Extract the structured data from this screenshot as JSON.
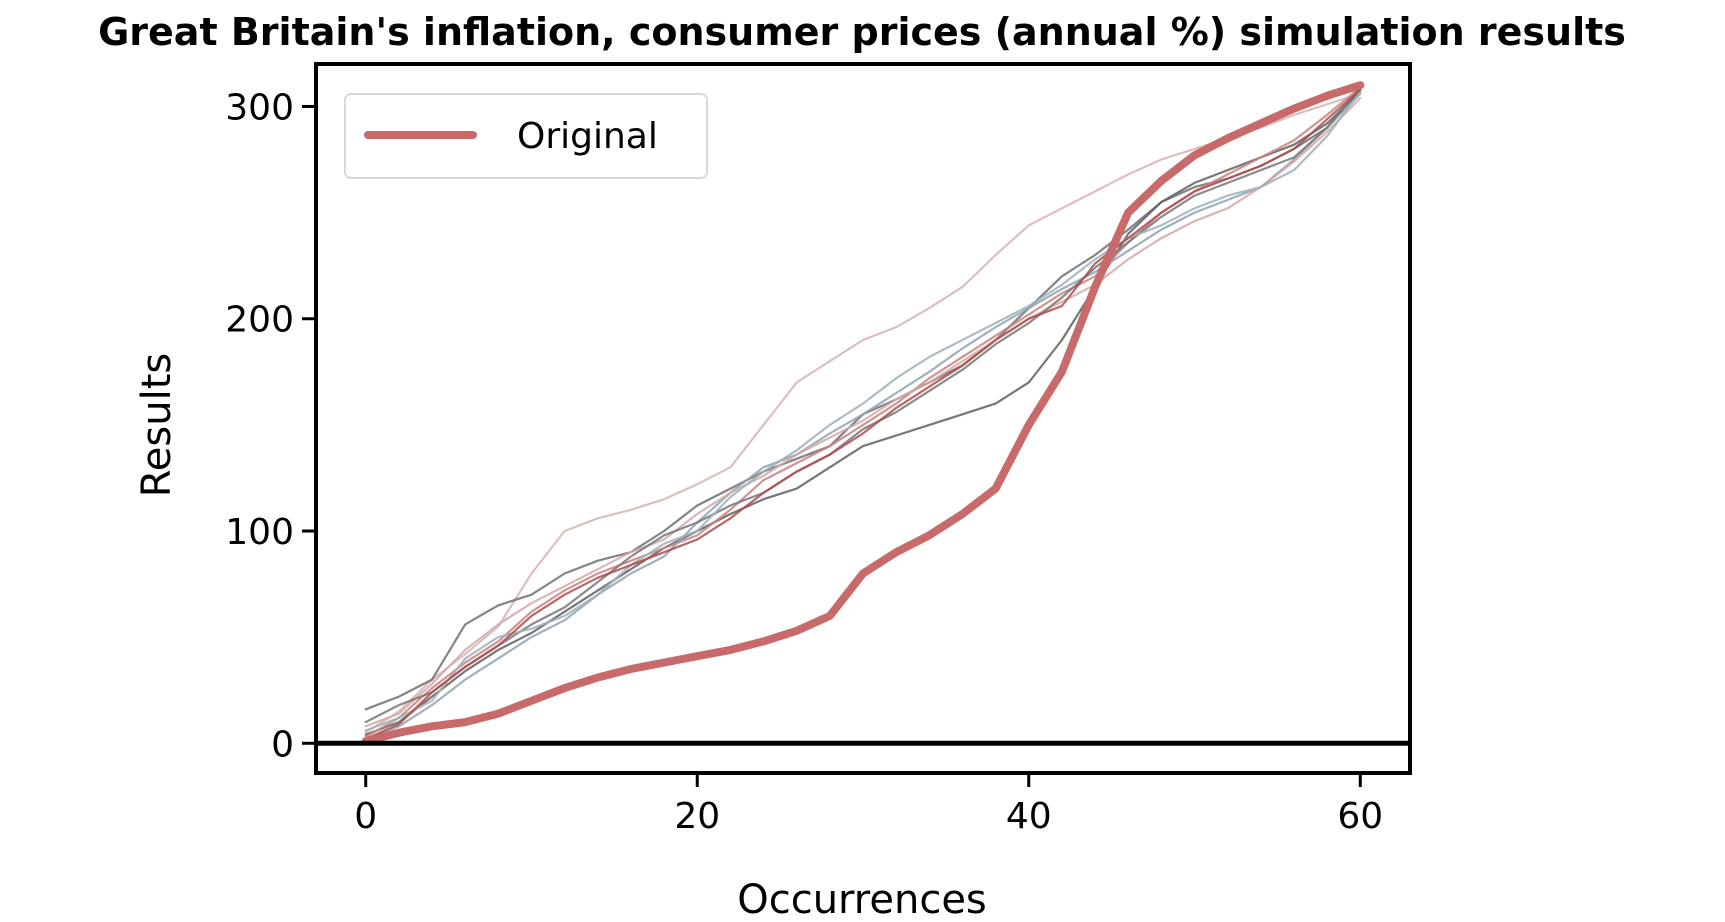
{
  "chart_data": {
    "type": "line",
    "title": "Great Britain's inflation, consumer prices (annual %) simulation results",
    "xlabel": "Occurrences",
    "ylabel": "Results",
    "xlim": [
      -3,
      63
    ],
    "ylim": [
      -14,
      320
    ],
    "xticks": [
      0,
      20,
      40,
      60
    ],
    "yticks": [
      0,
      100,
      200,
      300
    ],
    "grid": false,
    "legend_position": "top-left",
    "zero_line": true,
    "series": [
      {
        "name": "Original",
        "color": "#c96a6a",
        "highlight": true,
        "x": [
          0,
          2,
          4,
          6,
          8,
          10,
          12,
          14,
          16,
          18,
          20,
          22,
          24,
          26,
          28,
          30,
          32,
          34,
          36,
          38,
          40,
          42,
          44,
          46,
          48,
          50,
          52,
          54,
          56,
          58,
          60
        ],
        "y": [
          1,
          5,
          8,
          10,
          14,
          20,
          26,
          31,
          35,
          38,
          41,
          44,
          48,
          53,
          60,
          80,
          90,
          98,
          108,
          120,
          150,
          175,
          215,
          250,
          265,
          277,
          285,
          292,
          299,
          305,
          310
        ]
      },
      {
        "color": "#d7b3b3",
        "x": [
          0,
          2,
          4,
          6,
          8,
          10,
          12,
          14,
          16,
          18,
          20,
          22,
          24,
          26,
          28,
          30,
          32,
          34,
          36,
          38,
          40,
          42,
          44,
          46,
          48,
          50,
          52,
          54,
          56,
          58,
          60
        ],
        "y": [
          5,
          15,
          30,
          42,
          55,
          80,
          100,
          106,
          110,
          115,
          122,
          130,
          150,
          170,
          180,
          190,
          196,
          205,
          215,
          230,
          244,
          252,
          260,
          268,
          275,
          280,
          285,
          290,
          296,
          301,
          306
        ]
      },
      {
        "color": "#6e6e6e",
        "x": [
          0,
          2,
          4,
          6,
          8,
          10,
          12,
          14,
          16,
          18,
          20,
          22,
          24,
          26,
          28,
          30,
          32,
          34,
          36,
          38,
          40,
          42,
          44,
          46,
          48,
          50,
          52,
          54,
          56,
          58,
          60
        ],
        "y": [
          16,
          22,
          30,
          56,
          65,
          70,
          80,
          86,
          90,
          100,
          112,
          120,
          128,
          134,
          140,
          155,
          162,
          170,
          178,
          190,
          205,
          220,
          230,
          242,
          255,
          262,
          266,
          272,
          280,
          290,
          308
        ]
      },
      {
        "color": "#5f5f5f",
        "x": [
          0,
          2,
          4,
          6,
          8,
          10,
          12,
          14,
          16,
          18,
          20,
          22,
          24,
          26,
          28,
          30,
          32,
          34,
          36,
          38,
          40,
          42,
          44,
          46,
          48,
          50,
          52,
          54,
          56,
          58,
          60
        ],
        "y": [
          4,
          10,
          22,
          34,
          44,
          52,
          62,
          72,
          82,
          92,
          100,
          108,
          115,
          120,
          130,
          140,
          145,
          150,
          155,
          160,
          170,
          190,
          215,
          240,
          255,
          264,
          270,
          276,
          282,
          292,
          307
        ]
      },
      {
        "color": "#c98080",
        "x": [
          0,
          2,
          4,
          6,
          8,
          10,
          12,
          14,
          16,
          18,
          20,
          22,
          24,
          26,
          28,
          30,
          32,
          34,
          36,
          38,
          40,
          42,
          44,
          46,
          48,
          50,
          52,
          54,
          56,
          58,
          60
        ],
        "y": [
          3,
          12,
          26,
          38,
          48,
          62,
          72,
          80,
          86,
          92,
          98,
          110,
          124,
          132,
          140,
          150,
          160,
          172,
          182,
          192,
          202,
          212,
          220,
          236,
          250,
          260,
          268,
          276,
          284,
          296,
          309
        ]
      },
      {
        "color": "#8fa3b0",
        "x": [
          0,
          2,
          4,
          6,
          8,
          10,
          12,
          14,
          16,
          18,
          20,
          22,
          24,
          26,
          28,
          30,
          32,
          34,
          36,
          38,
          40,
          42,
          44,
          46,
          48,
          50,
          52,
          54,
          56,
          58,
          60
        ],
        "y": [
          2,
          8,
          18,
          30,
          40,
          50,
          58,
          70,
          80,
          88,
          104,
          118,
          130,
          136,
          146,
          155,
          165,
          175,
          186,
          196,
          205,
          214,
          222,
          232,
          242,
          250,
          256,
          262,
          275,
          290,
          306
        ]
      },
      {
        "color": "#d4a8a8",
        "x": [
          0,
          2,
          4,
          6,
          8,
          10,
          12,
          14,
          16,
          18,
          20,
          22,
          24,
          26,
          28,
          30,
          32,
          34,
          36,
          38,
          40,
          42,
          44,
          46,
          48,
          50,
          52,
          54,
          56,
          58,
          60
        ],
        "y": [
          8,
          14,
          28,
          44,
          56,
          66,
          74,
          82,
          90,
          96,
          108,
          118,
          126,
          136,
          144,
          152,
          162,
          170,
          180,
          190,
          200,
          208,
          216,
          228,
          238,
          246,
          252,
          262,
          274,
          288,
          304
        ]
      },
      {
        "color": "#777777",
        "x": [
          0,
          2,
          4,
          6,
          8,
          10,
          12,
          14,
          16,
          18,
          20,
          22,
          24,
          26,
          28,
          30,
          32,
          34,
          36,
          38,
          40,
          42,
          44,
          46,
          48,
          50,
          52,
          54,
          56,
          58,
          60
        ],
        "y": [
          10,
          18,
          24,
          36,
          46,
          56,
          64,
          76,
          88,
          98,
          104,
          112,
          118,
          128,
          136,
          148,
          156,
          166,
          176,
          188,
          198,
          210,
          224,
          236,
          248,
          258,
          264,
          270,
          276,
          290,
          309
        ]
      },
      {
        "color": "#9fb0ba",
        "x": [
          0,
          2,
          4,
          6,
          8,
          10,
          12,
          14,
          16,
          18,
          20,
          22,
          24,
          26,
          28,
          30,
          32,
          34,
          36,
          38,
          40,
          42,
          44,
          46,
          48,
          50,
          52,
          54,
          56,
          58,
          60
        ],
        "y": [
          6,
          12,
          20,
          40,
          50,
          54,
          60,
          70,
          84,
          94,
          100,
          116,
          128,
          138,
          150,
          160,
          172,
          182,
          190,
          198,
          206,
          216,
          228,
          238,
          244,
          252,
          258,
          262,
          270,
          286,
          307
        ]
      },
      {
        "color": "#b04a4a",
        "x": [
          0,
          2,
          4,
          6,
          8,
          10,
          12,
          14,
          16,
          18,
          20,
          22,
          24,
          26,
          28,
          30,
          32,
          34,
          36,
          38,
          40,
          42,
          44,
          46,
          48,
          50,
          52,
          54,
          56,
          58,
          60
        ],
        "y": [
          2,
          9,
          24,
          36,
          46,
          60,
          70,
          78,
          84,
          90,
          96,
          106,
          118,
          128,
          136,
          146,
          158,
          168,
          178,
          190,
          200,
          206,
          226,
          238,
          250,
          260,
          266,
          272,
          280,
          294,
          308
        ]
      }
    ]
  }
}
